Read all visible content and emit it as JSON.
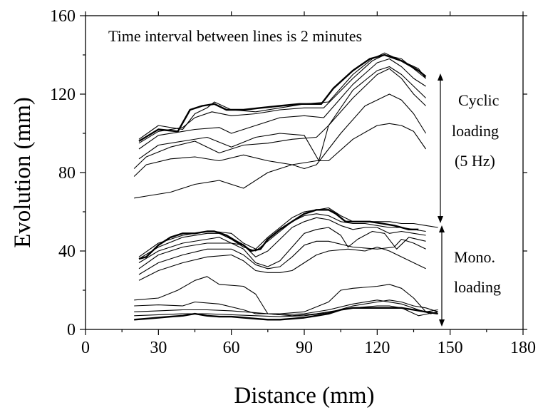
{
  "chart_data": {
    "type": "line",
    "xlabel": "Distance (mm)",
    "ylabel": "Evolution (mm)",
    "xlim": [
      0,
      180
    ],
    "ylim": [
      0,
      160
    ],
    "xticks": [
      0,
      30,
      60,
      90,
      120,
      150,
      180
    ],
    "yticks": [
      0,
      40,
      80,
      120,
      160
    ],
    "xtick_labels": [
      "0",
      "30",
      "60",
      "90",
      "120",
      "150",
      "180"
    ],
    "ytick_labels": [
      "0",
      "40",
      "80",
      "120",
      "160"
    ],
    "grid": false,
    "annotations": {
      "top_note": "Time interval between lines is 2 minutes",
      "cyclic": [
        "Cyclic",
        "loading",
        "(5 Hz)"
      ],
      "mono": [
        "Mono.",
        "loading"
      ]
    },
    "series": [
      {
        "group": "cyclic",
        "bold": false,
        "x": [
          20,
          25,
          35,
          45,
          55,
          65,
          75,
          85,
          95,
          100,
          110,
          120,
          125,
          130,
          135,
          140
        ],
        "y": [
          67,
          68,
          70,
          74,
          76,
          72,
          80,
          84,
          86,
          86,
          97,
          104,
          105,
          104,
          101,
          92
        ]
      },
      {
        "group": "cyclic",
        "bold": false,
        "x": [
          20,
          25,
          35,
          45,
          55,
          65,
          75,
          85,
          90,
          95,
          105,
          115,
          125,
          130,
          135,
          140
        ],
        "y": [
          78,
          84,
          87,
          88,
          86,
          89,
          86,
          84,
          82,
          84,
          100,
          114,
          120,
          117,
          110,
          100
        ]
      },
      {
        "group": "cyclic",
        "bold": false,
        "x": [
          20,
          25,
          35,
          45,
          55,
          65,
          75,
          85,
          95,
          100,
          110,
          120,
          125,
          130,
          135,
          140
        ],
        "y": [
          82,
          88,
          93,
          96,
          90,
          94,
          95,
          97,
          98,
          104,
          118,
          130,
          133,
          128,
          120,
          114
        ]
      },
      {
        "group": "cyclic",
        "bold": false,
        "x": [
          22,
          30,
          40,
          50,
          60,
          70,
          80,
          90,
          96,
          100,
          110,
          120,
          125,
          130,
          135,
          140
        ],
        "y": [
          87,
          94,
          96,
          98,
          93,
          98,
          100,
          99,
          86,
          104,
          122,
          132,
          134,
          130,
          124,
          118
        ]
      },
      {
        "group": "cyclic",
        "bold": false,
        "x": [
          22,
          30,
          40,
          45,
          55,
          60,
          70,
          80,
          90,
          98,
          110,
          120,
          125,
          130,
          135,
          140
        ],
        "y": [
          92,
          99,
          101,
          102,
          103,
          100,
          104,
          108,
          109,
          108,
          125,
          136,
          138,
          134,
          128,
          124
        ]
      },
      {
        "group": "cyclic",
        "bold": false,
        "x": [
          22,
          30,
          40,
          45,
          52,
          60,
          70,
          80,
          90,
          98,
          110,
          118,
          123,
          130,
          135,
          140
        ],
        "y": [
          95,
          101,
          103,
          108,
          111,
          109,
          110,
          112,
          113,
          113,
          128,
          137,
          140,
          138,
          133,
          128
        ]
      },
      {
        "group": "cyclic",
        "bold": true,
        "x": [
          22,
          30,
          38,
          43,
          48,
          53,
          58,
          65,
          72,
          80,
          88,
          97,
          102,
          110,
          117,
          123,
          130,
          137,
          140
        ],
        "y": [
          96,
          102,
          101,
          112,
          114,
          115,
          112,
          112,
          113,
          114,
          115,
          115,
          123,
          132,
          138,
          140,
          137,
          132,
          129
        ]
      },
      {
        "group": "cyclic",
        "bold": false,
        "x": [
          22,
          30,
          40,
          45,
          50,
          53,
          60,
          70,
          80,
          90,
          100,
          110,
          118,
          123,
          130,
          137,
          140
        ],
        "y": [
          97,
          104,
          102,
          110,
          113,
          116,
          112,
          111,
          113,
          115,
          116,
          130,
          138,
          141,
          137,
          133,
          128
        ]
      },
      {
        "group": "mono",
        "bold": true,
        "x": [
          20,
          25,
          30,
          35,
          40,
          45,
          50,
          55,
          60,
          65,
          70,
          75,
          80,
          85,
          90,
          95,
          100,
          105,
          110,
          115,
          120,
          125,
          130,
          135,
          140,
          145
        ],
        "y": [
          5,
          5.5,
          6,
          6.5,
          7,
          8,
          7,
          6.5,
          6.5,
          6,
          5.5,
          5,
          5,
          5.5,
          6,
          7,
          8,
          10,
          11,
          11,
          11,
          11,
          11,
          10,
          9,
          8
        ]
      },
      {
        "group": "mono",
        "bold": false,
        "x": [
          20,
          30,
          40,
          50,
          60,
          70,
          80,
          90,
          100,
          110,
          120,
          125,
          130,
          135,
          140,
          145
        ],
        "y": [
          7,
          7.5,
          8,
          8,
          7.5,
          7,
          6.5,
          7,
          8.5,
          12,
          14,
          15,
          14,
          12,
          11,
          9
        ]
      },
      {
        "group": "mono",
        "bold": false,
        "x": [
          20,
          30,
          40,
          50,
          60,
          70,
          80,
          90,
          100,
          110,
          120,
          130,
          137,
          142,
          145
        ],
        "y": [
          9,
          9.5,
          10,
          10,
          9.5,
          8.5,
          7.5,
          8,
          10,
          13,
          15,
          13,
          10,
          8,
          9
        ]
      },
      {
        "group": "mono",
        "bold": false,
        "x": [
          20,
          30,
          40,
          45,
          55,
          65,
          70,
          80,
          90,
          100,
          105,
          110,
          120,
          125,
          130,
          135,
          140,
          145
        ],
        "y": [
          12,
          12.5,
          12,
          14,
          13,
          10,
          8,
          8,
          9,
          14,
          20,
          21,
          22,
          23,
          21,
          16,
          9,
          10
        ]
      },
      {
        "group": "mono",
        "bold": false,
        "x": [
          20,
          30,
          38,
          45,
          50,
          55,
          65,
          70,
          75,
          85,
          95,
          100,
          110,
          120,
          125,
          130,
          137,
          141,
          145
        ],
        "y": [
          15,
          16,
          20,
          25,
          27,
          23,
          22,
          18,
          8,
          7,
          8,
          9,
          11,
          12,
          12,
          11,
          7,
          8,
          9
        ]
      },
      {
        "group": "mono",
        "bold": false,
        "x": [
          22,
          30,
          40,
          50,
          60,
          65,
          70,
          75,
          80,
          85,
          90,
          95,
          100,
          108,
          115,
          120,
          125,
          130,
          135,
          140
        ],
        "y": [
          25,
          30,
          34,
          37,
          38,
          35,
          30,
          29,
          29,
          30,
          34,
          38,
          40,
          41,
          40,
          42,
          40,
          37,
          34,
          31
        ]
      },
      {
        "group": "mono",
        "bold": false,
        "x": [
          22,
          30,
          40,
          50,
          60,
          65,
          70,
          75,
          80,
          85,
          90,
          95,
          100,
          110,
          120,
          127,
          130,
          135,
          140
        ],
        "y": [
          28,
          34,
          38,
          41,
          41,
          38,
          33,
          31,
          32,
          37,
          43,
          45,
          45,
          42,
          41,
          42,
          46,
          44,
          41
        ]
      },
      {
        "group": "mono",
        "bold": false,
        "x": [
          22,
          30,
          40,
          50,
          60,
          65,
          70,
          75,
          80,
          85,
          90,
          95,
          100,
          105,
          108,
          112,
          118,
          123,
          128,
          133,
          140
        ],
        "y": [
          31,
          38,
          42,
          44,
          44,
          41,
          34,
          32,
          35,
          42,
          49,
          51,
          52,
          48,
          42,
          46,
          50,
          49,
          41,
          47,
          45
        ]
      },
      {
        "group": "mono",
        "bold": false,
        "x": [
          22,
          30,
          40,
          50,
          55,
          60,
          65,
          70,
          75,
          80,
          85,
          90,
          95,
          100,
          105,
          110,
          115,
          120,
          125,
          130,
          135,
          140
        ],
        "y": [
          34,
          40,
          44,
          46,
          47,
          44,
          43,
          37,
          40,
          46,
          52,
          55,
          57,
          56,
          53,
          51,
          52,
          52,
          49,
          50,
          49,
          48
        ]
      },
      {
        "group": "mono",
        "bold": false,
        "x": [
          22,
          30,
          40,
          50,
          55,
          60,
          65,
          70,
          75,
          80,
          85,
          90,
          95,
          100,
          105,
          110,
          115,
          120,
          125,
          130,
          135,
          140
        ],
        "y": [
          36,
          42,
          47,
          49,
          49,
          46,
          42,
          40,
          45,
          50,
          55,
          58,
          59,
          58,
          55,
          54,
          54,
          53,
          52,
          52,
          51,
          50
        ]
      },
      {
        "group": "mono",
        "bold": false,
        "x": [
          22,
          30,
          40,
          50,
          53,
          60,
          65,
          70,
          75,
          80,
          85,
          90,
          95,
          100,
          105,
          110,
          115,
          120,
          125,
          130,
          135,
          140,
          145
        ],
        "y": [
          37,
          44,
          48,
          50,
          50,
          49,
          44,
          41,
          47,
          52,
          57,
          60,
          61,
          62,
          58,
          55,
          55,
          55,
          55,
          54,
          54,
          53,
          52
        ]
      },
      {
        "group": "mono",
        "bold": true,
        "x": [
          22,
          25,
          30,
          35,
          40,
          45,
          50,
          53,
          58,
          62,
          65,
          68,
          72,
          75,
          80,
          85,
          90,
          95,
          100,
          103,
          107,
          112,
          117,
          122,
          127,
          130,
          133,
          137
        ],
        "y": [
          36,
          37,
          43,
          47,
          49,
          49,
          50,
          50,
          48,
          45,
          43,
          40,
          41,
          46,
          51,
          55,
          59,
          61,
          61,
          59,
          55,
          55,
          55,
          54,
          53,
          52,
          51,
          51
        ]
      }
    ]
  }
}
